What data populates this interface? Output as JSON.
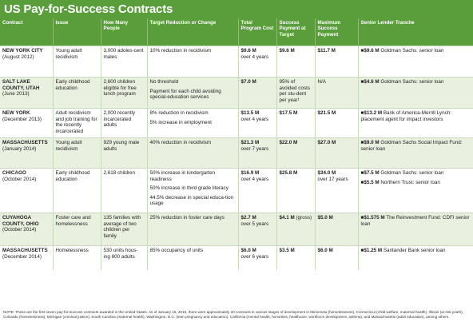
{
  "title": "US Pay-for-Success Contracts",
  "headers": [
    "Contract",
    "Issue",
    "How Many People",
    "Target Reduction or Change",
    "Total Program Cost",
    "Success Payment at Target",
    "Maximum Success Payment",
    "Senior Lender Tranche"
  ],
  "rows": [
    {
      "state": "NEW YORK CITY",
      "date": "(August 2012)",
      "issue": "Young adult recidivism",
      "people": "3,000 adoles-cent males",
      "targets": [
        "10% reduction in recidivism"
      ],
      "cost_value": "$9.6 M",
      "cost_note": "over 4 years",
      "success_value": "$9.6 M",
      "success_note": "",
      "max_value": "$11.7 M",
      "max_note": "",
      "lenders": [
        {
          "amount": "$9.6 M",
          "text": "Goldman Sachs: senior loan"
        }
      ]
    },
    {
      "state": "SALT LAKE COUNTY, UTAH",
      "date": "(June 2013)",
      "issue": "Early childhood education",
      "people": "2,600 children eligible for free lunch program",
      "targets": [
        "No threshold",
        "Payment for each child avoiding special-education services"
      ],
      "cost_value": "$7.0 M",
      "cost_note": "",
      "success_value": "",
      "success_note": "95% of avoided costs per stu-dent per year¹",
      "max_value": "",
      "max_note": "N/A",
      "lenders": [
        {
          "amount": "$4.6 M",
          "text": "Goldman Sachs: senior loan"
        }
      ]
    },
    {
      "state": "NEW YORK",
      "date": "(December 2013)",
      "issue": "Adult recidivism and job training for the recently incarcerated",
      "people": "2,000 recently incarcerated adults",
      "targets": [
        "8% reduction in recidivism",
        "5% increase in employment"
      ],
      "cost_value": "$13.5 M",
      "cost_note": "over 4 years",
      "success_value": "$17.5 M",
      "success_note": "",
      "max_value": "$21.5 M",
      "max_note": "",
      "lenders": [
        {
          "amount": "$13.2 M",
          "text": "Bank of America-Merrill Lynch: placement agent for impact investors"
        }
      ]
    },
    {
      "state": "MASSACHUSETTS",
      "date": "(January 2014)",
      "issue": "Young adult recidivism",
      "people": "929 young male adults",
      "targets": [
        "40% reduction in recidivism"
      ],
      "cost_value": "$21.3 M",
      "cost_note": "over 7 years",
      "success_value": "$22.0 M",
      "success_note": "",
      "max_value": "$27.0 M",
      "max_note": "",
      "lenders": [
        {
          "amount": "$9.0 M",
          "text": "Goldman Sachs Social Impact Fund: senior loan"
        }
      ]
    },
    {
      "state": "CHICAGO",
      "date": "(October 2014)",
      "issue": "Early childhood education",
      "people": "2,618 children",
      "targets": [
        "50% increase in kindergarten readiness",
        "50% increase in third grade literacy",
        "44.5% decrease in special educa-tion usage"
      ],
      "cost_value": "$16.9 M",
      "cost_note": "over 4 years",
      "success_value": "$25.8 M",
      "success_note": "",
      "max_value": "$34.0 M",
      "max_note": "over 17 years",
      "lenders": [
        {
          "amount": "$7.5 M",
          "text": "Goldman Sachs: senior loan"
        },
        {
          "amount": "$5.5 M",
          "text": "Northern Trust: senior loan"
        }
      ]
    },
    {
      "state": "CUYAHOGA COUNTY, OHIO",
      "date": "(October 2014)",
      "issue": "Foster care and homelessness",
      "people": "135 families with average of two children per family",
      "targets": [
        "25% reduction in foster care days"
      ],
      "cost_value": "$2.7 M",
      "cost_note": "over 5 years",
      "success_value": "$4.1 M",
      "success_note": " (gross)",
      "max_value": "$5.0 M",
      "max_note": "",
      "lenders": [
        {
          "amount": "$1.575 M",
          "text": "The Reinvestment Fund: CDFI senior loan"
        }
      ]
    },
    {
      "state": "MASSACHUSETTS",
      "date": "(December 2014)",
      "issue": "Homelessness",
      "people": "530 units hous-ing 800 adults",
      "targets": [
        "85% occupancy of units"
      ],
      "cost_value": "$6.0 M",
      "cost_note": "over 6 years",
      "success_value": "$3.5 M",
      "success_note": "",
      "max_value": "$6.0 M",
      "max_note": "",
      "lenders": [
        {
          "amount": "$1.25 M",
          "text": "Santander Bank senior loan"
        }
      ]
    }
  ],
  "note": "NOTE: These are the first seven pay-for-success contracts awarded in the United States. As of January 15, 2015, there were approximately 20 contracts in various stages of development in Minnesota (homelessness), Connecticut (child welfare, maternal health), Illinois (at-risk youth), Colorado (homelessness), Michigan (criminal justice), South Carolina (maternal health), Washington, D.C. (teen pregnancy and education), California (mental health, homeless, healthcare, workforce development, asthma), and Massachusetts (adult education), among others."
}
